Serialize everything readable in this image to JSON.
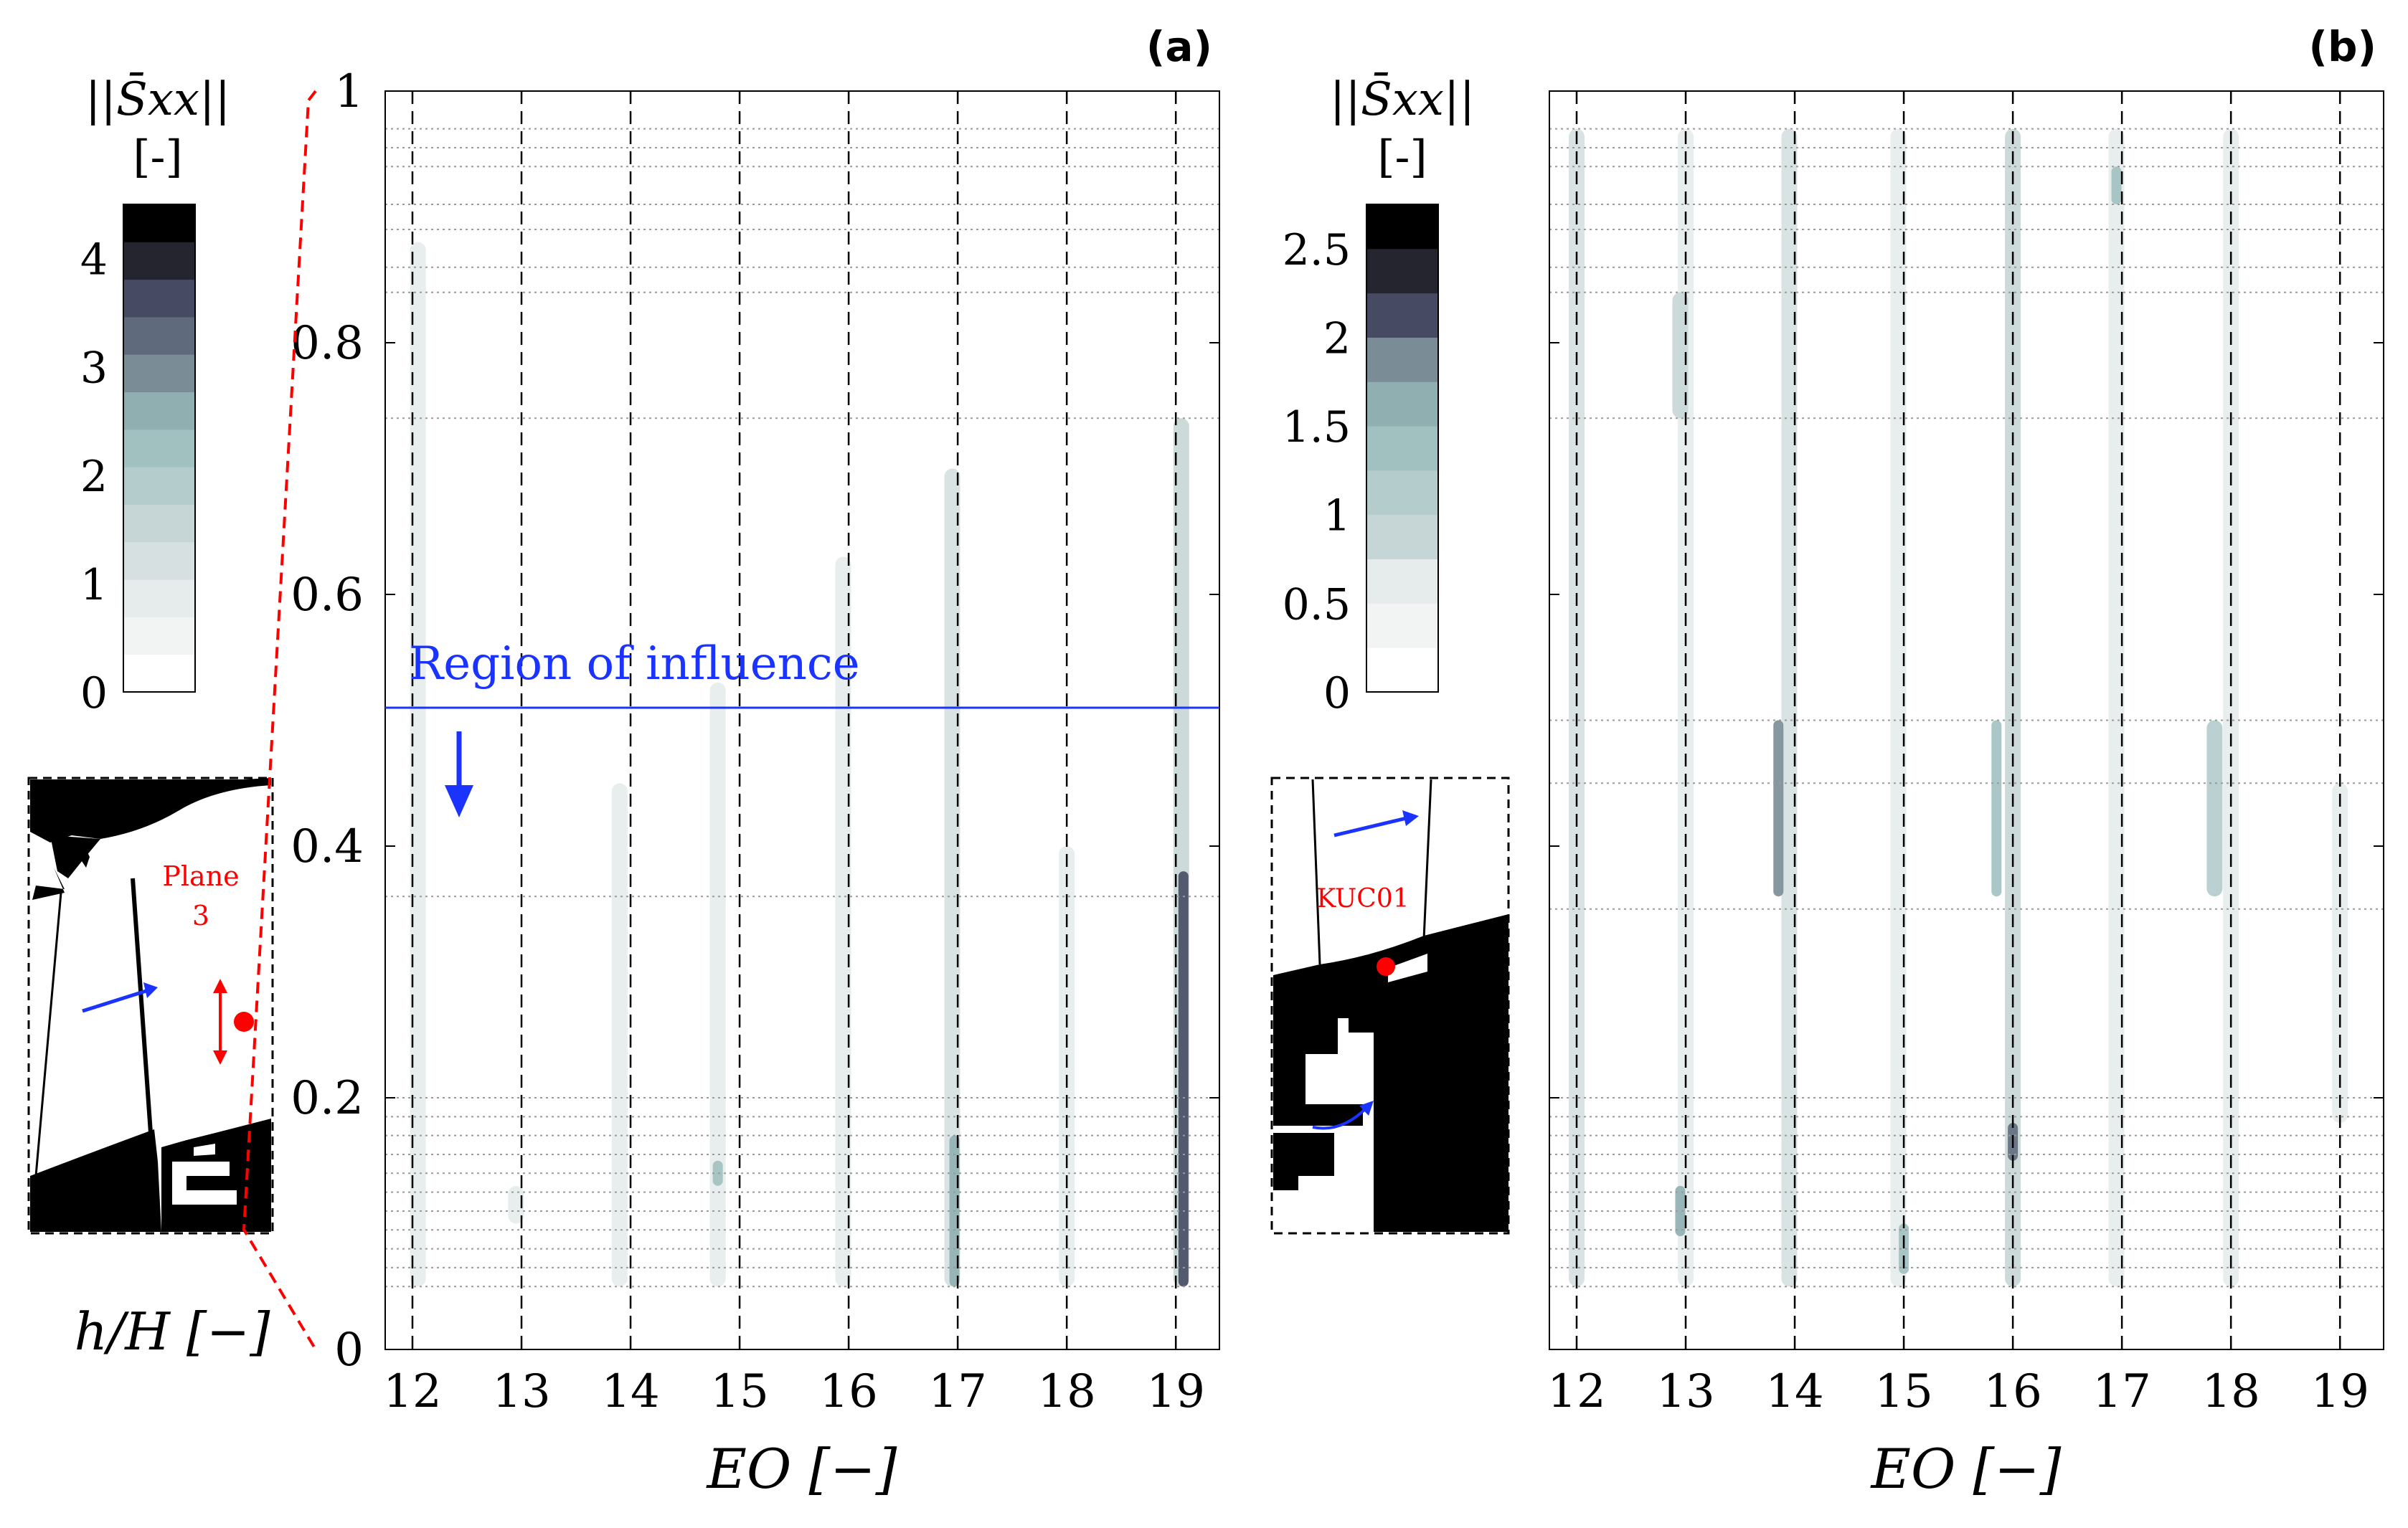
{
  "colors": {
    "contour_scale": [
      "#ffffff",
      "#f2f4f4",
      "#e6ebeb",
      "#d6e0e0",
      "#c6d6d6",
      "#b4cccc",
      "#a1c0c0",
      "#8fafb1",
      "#7a8c95",
      "#5f6b7d",
      "#464a63",
      "#25252f",
      "#000000"
    ],
    "region_line": "#1a33ff",
    "marker": "#ff0000",
    "geometry": "#000000"
  },
  "chart_data": [
    {
      "type": "heatmap",
      "panel_label": "(a)",
      "xlabel": "EO [−]",
      "ylabel": "h/H [−]",
      "xlim": [
        11.75,
        19.4
      ],
      "ylim": [
        0,
        1
      ],
      "xticks": [
        12,
        13,
        14,
        15,
        16,
        17,
        18,
        19
      ],
      "yticks": [
        0,
        0.2,
        0.4,
        0.6,
        0.8,
        1
      ],
      "ytick_labels": [
        "0",
        "0.2",
        "0.4",
        "0.6",
        "0.8",
        "1"
      ],
      "vertical_dashed_lines": [
        12,
        13,
        14,
        15,
        16,
        17,
        18,
        19
      ],
      "measurement_levels": [
        0.05,
        0.065,
        0.08,
        0.095,
        0.11,
        0.125,
        0.14,
        0.155,
        0.17,
        0.185,
        0.2,
        0.36,
        0.74,
        0.84,
        0.86,
        0.89,
        0.91,
        0.94,
        0.955,
        0.97
      ],
      "annotation": "Region of influence",
      "region_level": 0.51,
      "colorbar": {
        "title": "||S̄xx||",
        "units": "[-]",
        "ticks": [
          0,
          1,
          2,
          3,
          4
        ],
        "range": [
          0,
          4.5
        ],
        "levels": 13
      },
      "inset": {
        "label_line1": "Plane",
        "label_line2": "3"
      },
      "features": [
        {
          "eo": 12.05,
          "h_min": 0.05,
          "h_max": 0.88,
          "level": 2
        },
        {
          "eo": 12.95,
          "h_min": 0.1,
          "h_max": 0.13,
          "level": 2
        },
        {
          "eo": 13.9,
          "h_min": 0.05,
          "h_max": 0.45,
          "level": 2
        },
        {
          "eo": 14.8,
          "h_min": 0.05,
          "h_max": 0.53,
          "level": 2
        },
        {
          "eo": 14.8,
          "h_min": 0.13,
          "h_max": 0.15,
          "level": 6
        },
        {
          "eo": 15.95,
          "h_min": 0.05,
          "h_max": 0.63,
          "level": 2
        },
        {
          "eo": 16.95,
          "h_min": 0.05,
          "h_max": 0.7,
          "level": 3
        },
        {
          "eo": 16.97,
          "h_min": 0.05,
          "h_max": 0.17,
          "level": 7
        },
        {
          "eo": 18.0,
          "h_min": 0.05,
          "h_max": 0.4,
          "level": 2
        },
        {
          "eo": 19.05,
          "h_min": 0.05,
          "h_max": 0.74,
          "level": 4
        },
        {
          "eo": 19.07,
          "h_min": 0.05,
          "h_max": 0.38,
          "level": 10
        }
      ]
    },
    {
      "type": "heatmap",
      "panel_label": "(b)",
      "xlabel": "EO [−]",
      "xlim": [
        11.75,
        19.4
      ],
      "ylim": [
        0,
        1
      ],
      "xticks": [
        12,
        13,
        14,
        15,
        16,
        17,
        18,
        19
      ],
      "vertical_dashed_lines": [
        12,
        13,
        14,
        15,
        16,
        17,
        18,
        19
      ],
      "measurement_levels": [
        0.05,
        0.065,
        0.08,
        0.095,
        0.11,
        0.125,
        0.14,
        0.155,
        0.17,
        0.185,
        0.2,
        0.35,
        0.45,
        0.5,
        0.74,
        0.84,
        0.86,
        0.89,
        0.91,
        0.94,
        0.955,
        0.97
      ],
      "colorbar": {
        "title": "||S̄xx||",
        "units": "[-]",
        "ticks": [
          0,
          0.5,
          1,
          1.5,
          2,
          2.5
        ],
        "tick_labels": [
          "0",
          "0.5",
          "1",
          "1.5",
          "2",
          "2.5"
        ],
        "range": [
          0,
          2.75
        ],
        "levels": 11
      },
      "inset": {
        "label": "KUC01"
      },
      "features": [
        {
          "eo": 12.0,
          "h_min": 0.05,
          "h_max": 0.97,
          "level": 3
        },
        {
          "eo": 13.0,
          "h_min": 0.05,
          "h_max": 0.97,
          "level": 2
        },
        {
          "eo": 12.95,
          "h_min": 0.74,
          "h_max": 0.84,
          "level": 4
        },
        {
          "eo": 12.95,
          "h_min": 0.09,
          "h_max": 0.13,
          "level": 7
        },
        {
          "eo": 13.95,
          "h_min": 0.05,
          "h_max": 0.97,
          "level": 3
        },
        {
          "eo": 13.85,
          "h_min": 0.36,
          "h_max": 0.5,
          "level": 8
        },
        {
          "eo": 14.95,
          "h_min": 0.05,
          "h_max": 0.97,
          "level": 2
        },
        {
          "eo": 15.0,
          "h_min": 0.06,
          "h_max": 0.1,
          "level": 6
        },
        {
          "eo": 16.0,
          "h_min": 0.05,
          "h_max": 0.97,
          "level": 4
        },
        {
          "eo": 16.0,
          "h_min": 0.15,
          "h_max": 0.18,
          "level": 9
        },
        {
          "eo": 15.85,
          "h_min": 0.36,
          "h_max": 0.5,
          "level": 6
        },
        {
          "eo": 16.95,
          "h_min": 0.05,
          "h_max": 0.97,
          "level": 2
        },
        {
          "eo": 16.95,
          "h_min": 0.91,
          "h_max": 0.94,
          "level": 6
        },
        {
          "eo": 18.0,
          "h_min": 0.05,
          "h_max": 0.97,
          "level": 2
        },
        {
          "eo": 17.85,
          "h_min": 0.36,
          "h_max": 0.5,
          "level": 5
        },
        {
          "eo": 19.0,
          "h_min": 0.18,
          "h_max": 0.45,
          "level": 2
        }
      ]
    }
  ]
}
